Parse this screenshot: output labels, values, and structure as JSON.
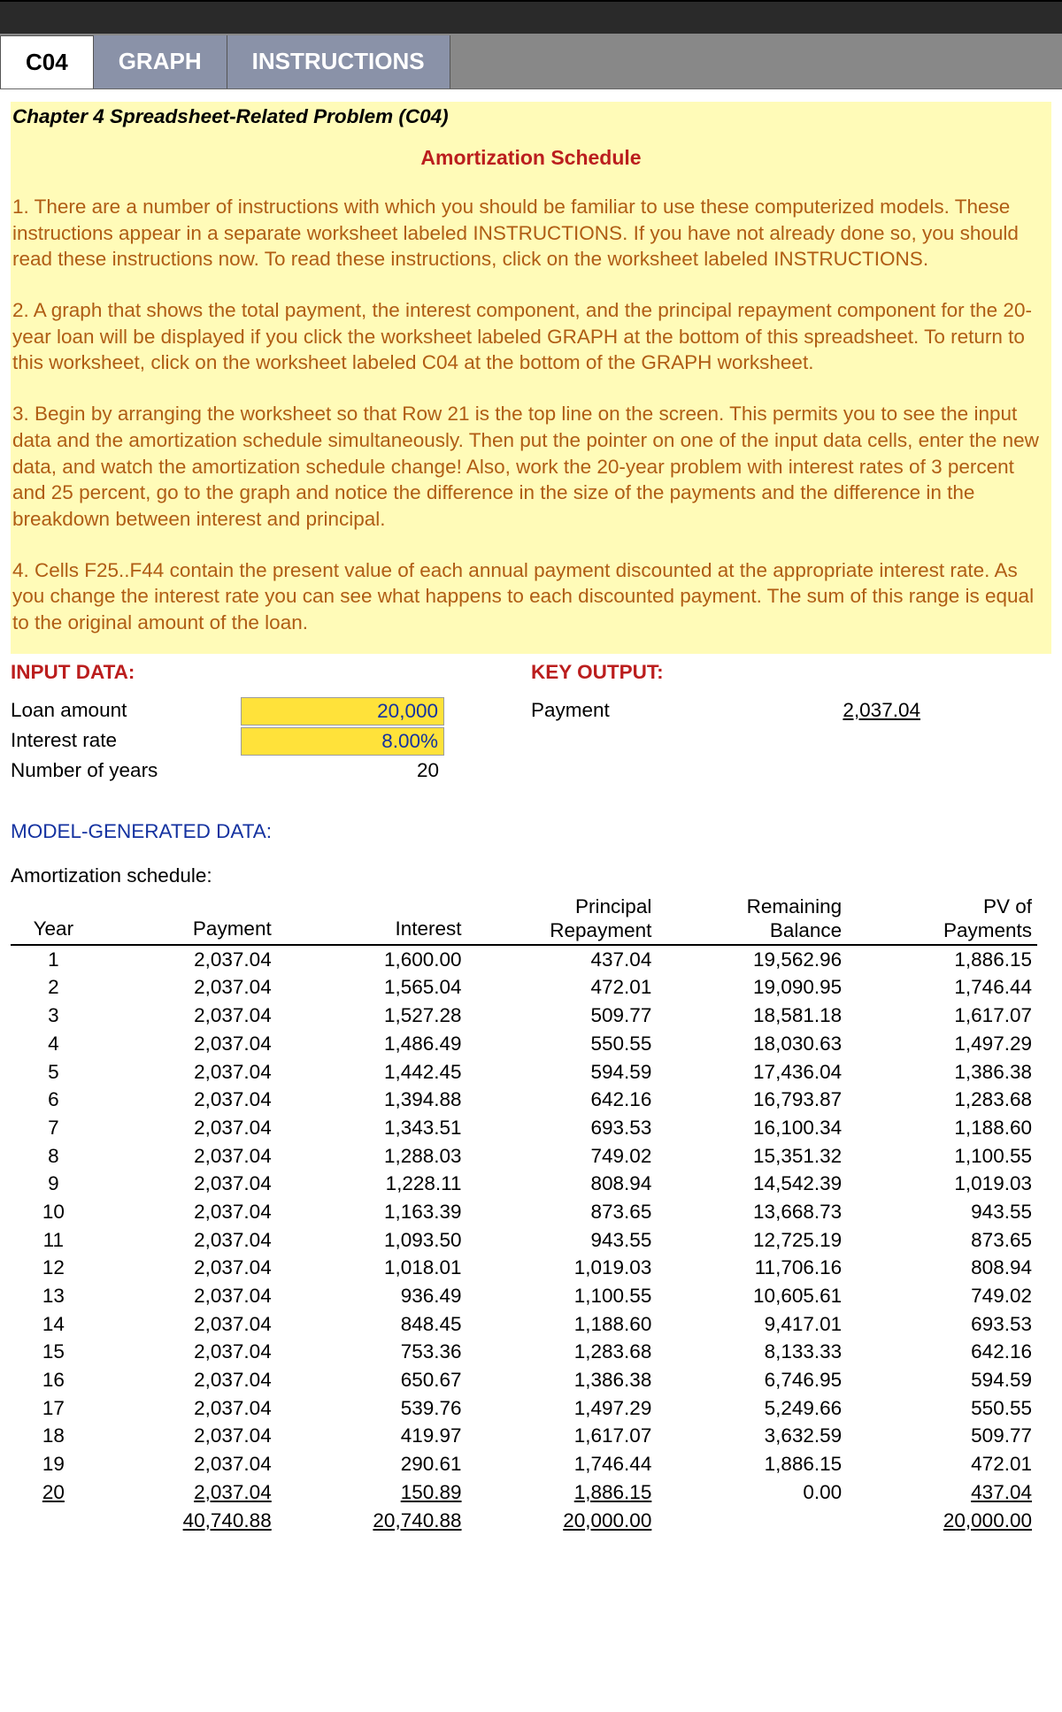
{
  "tabs": {
    "c04": "C04",
    "graph": "GRAPH",
    "instructions": "INSTRUCTIONS"
  },
  "header": {
    "chapter_title": "Chapter 4 Spreadsheet-Related Problem  (C04)",
    "subtitle": "Amortization Schedule"
  },
  "instructions": {
    "p1": "1.  There are a number of instructions with which you should be familiar to use these computerized models.  These instructions appear in a separate worksheet labeled INSTRUCTIONS. If you have not already done so, you should read these instructions now.  To read these instructions, click on the worksheet labeled INSTRUCTIONS.",
    "p2": "2.  A graph that shows the total payment, the interest component, and the principal repayment component for the 20-year loan will be displayed if you click the worksheet labeled GRAPH at the bottom of this spreadsheet. To return to this worksheet, click on the worksheet labeled C04 at the bottom of the GRAPH worksheet.",
    "p3": "3.  Begin by arranging the worksheet so that Row 21 is the top line on the screen. This permits you to see the input data and the amortization schedule simultaneously. Then put the pointer on one of the input data cells, enter the new data, and watch the amortization schedule change!  Also, work the 20-year problem with interest rates of 3 percent and 25 percent, go to the graph and notice the difference in the size of the payments and the difference in the breakdown between interest and principal.",
    "p4": "4.  Cells F25..F44 contain the present value of each annual payment discounted at the appropriate interest rate.  As you change the interest rate you can see what happens to each discounted payment. The sum of this range is equal to the original amount of the loan."
  },
  "input": {
    "title": "INPUT DATA:",
    "loan_label": "Loan amount",
    "loan_value": "20,000",
    "rate_label": "Interest rate",
    "rate_value": "8.00%",
    "years_label": "Number of years",
    "years_value": "20"
  },
  "output": {
    "title": "KEY OUTPUT:",
    "payment_label": "Payment",
    "payment_value": "2,037.04"
  },
  "model_gen": "MODEL-GENERATED DATA:",
  "amort_label": "Amortization schedule:",
  "columns": {
    "year": "Year",
    "payment": "Payment",
    "interest": "Interest",
    "principal1": "Principal",
    "principal2": "Repayment",
    "balance1": "Remaining",
    "balance2": "Balance",
    "pv1": "PV of",
    "pv2": "Payments"
  },
  "rows": [
    {
      "year": "1",
      "payment": "2,037.04",
      "interest": "1,600.00",
      "principal": "437.04",
      "balance": "19,562.96",
      "pv": "1,886.15"
    },
    {
      "year": "2",
      "payment": "2,037.04",
      "interest": "1,565.04",
      "principal": "472.01",
      "balance": "19,090.95",
      "pv": "1,746.44"
    },
    {
      "year": "3",
      "payment": "2,037.04",
      "interest": "1,527.28",
      "principal": "509.77",
      "balance": "18,581.18",
      "pv": "1,617.07"
    },
    {
      "year": "4",
      "payment": "2,037.04",
      "interest": "1,486.49",
      "principal": "550.55",
      "balance": "18,030.63",
      "pv": "1,497.29"
    },
    {
      "year": "5",
      "payment": "2,037.04",
      "interest": "1,442.45",
      "principal": "594.59",
      "balance": "17,436.04",
      "pv": "1,386.38"
    },
    {
      "year": "6",
      "payment": "2,037.04",
      "interest": "1,394.88",
      "principal": "642.16",
      "balance": "16,793.87",
      "pv": "1,283.68"
    },
    {
      "year": "7",
      "payment": "2,037.04",
      "interest": "1,343.51",
      "principal": "693.53",
      "balance": "16,100.34",
      "pv": "1,188.60"
    },
    {
      "year": "8",
      "payment": "2,037.04",
      "interest": "1,288.03",
      "principal": "749.02",
      "balance": "15,351.32",
      "pv": "1,100.55"
    },
    {
      "year": "9",
      "payment": "2,037.04",
      "interest": "1,228.11",
      "principal": "808.94",
      "balance": "14,542.39",
      "pv": "1,019.03"
    },
    {
      "year": "10",
      "payment": "2,037.04",
      "interest": "1,163.39",
      "principal": "873.65",
      "balance": "13,668.73",
      "pv": "943.55"
    },
    {
      "year": "11",
      "payment": "2,037.04",
      "interest": "1,093.50",
      "principal": "943.55",
      "balance": "12,725.19",
      "pv": "873.65"
    },
    {
      "year": "12",
      "payment": "2,037.04",
      "interest": "1,018.01",
      "principal": "1,019.03",
      "balance": "11,706.16",
      "pv": "808.94"
    },
    {
      "year": "13",
      "payment": "2,037.04",
      "interest": "936.49",
      "principal": "1,100.55",
      "balance": "10,605.61",
      "pv": "749.02"
    },
    {
      "year": "14",
      "payment": "2,037.04",
      "interest": "848.45",
      "principal": "1,188.60",
      "balance": "9,417.01",
      "pv": "693.53"
    },
    {
      "year": "15",
      "payment": "2,037.04",
      "interest": "753.36",
      "principal": "1,283.68",
      "balance": "8,133.33",
      "pv": "642.16"
    },
    {
      "year": "16",
      "payment": "2,037.04",
      "interest": "650.67",
      "principal": "1,386.38",
      "balance": "6,746.95",
      "pv": "594.59"
    },
    {
      "year": "17",
      "payment": "2,037.04",
      "interest": "539.76",
      "principal": "1,497.29",
      "balance": "5,249.66",
      "pv": "550.55"
    },
    {
      "year": "18",
      "payment": "2,037.04",
      "interest": "419.97",
      "principal": "1,617.07",
      "balance": "3,632.59",
      "pv": "509.77"
    },
    {
      "year": "19",
      "payment": "2,037.04",
      "interest": "290.61",
      "principal": "1,746.44",
      "balance": "1,886.15",
      "pv": "472.01"
    },
    {
      "year": "20",
      "payment": "2,037.04",
      "interest": "150.89",
      "principal": "1,886.15",
      "balance": "0.00",
      "pv": "437.04"
    }
  ],
  "totals": {
    "payment": "40,740.88",
    "interest": "20,740.88",
    "principal": "20,000.00",
    "pv": "20,000.00"
  }
}
